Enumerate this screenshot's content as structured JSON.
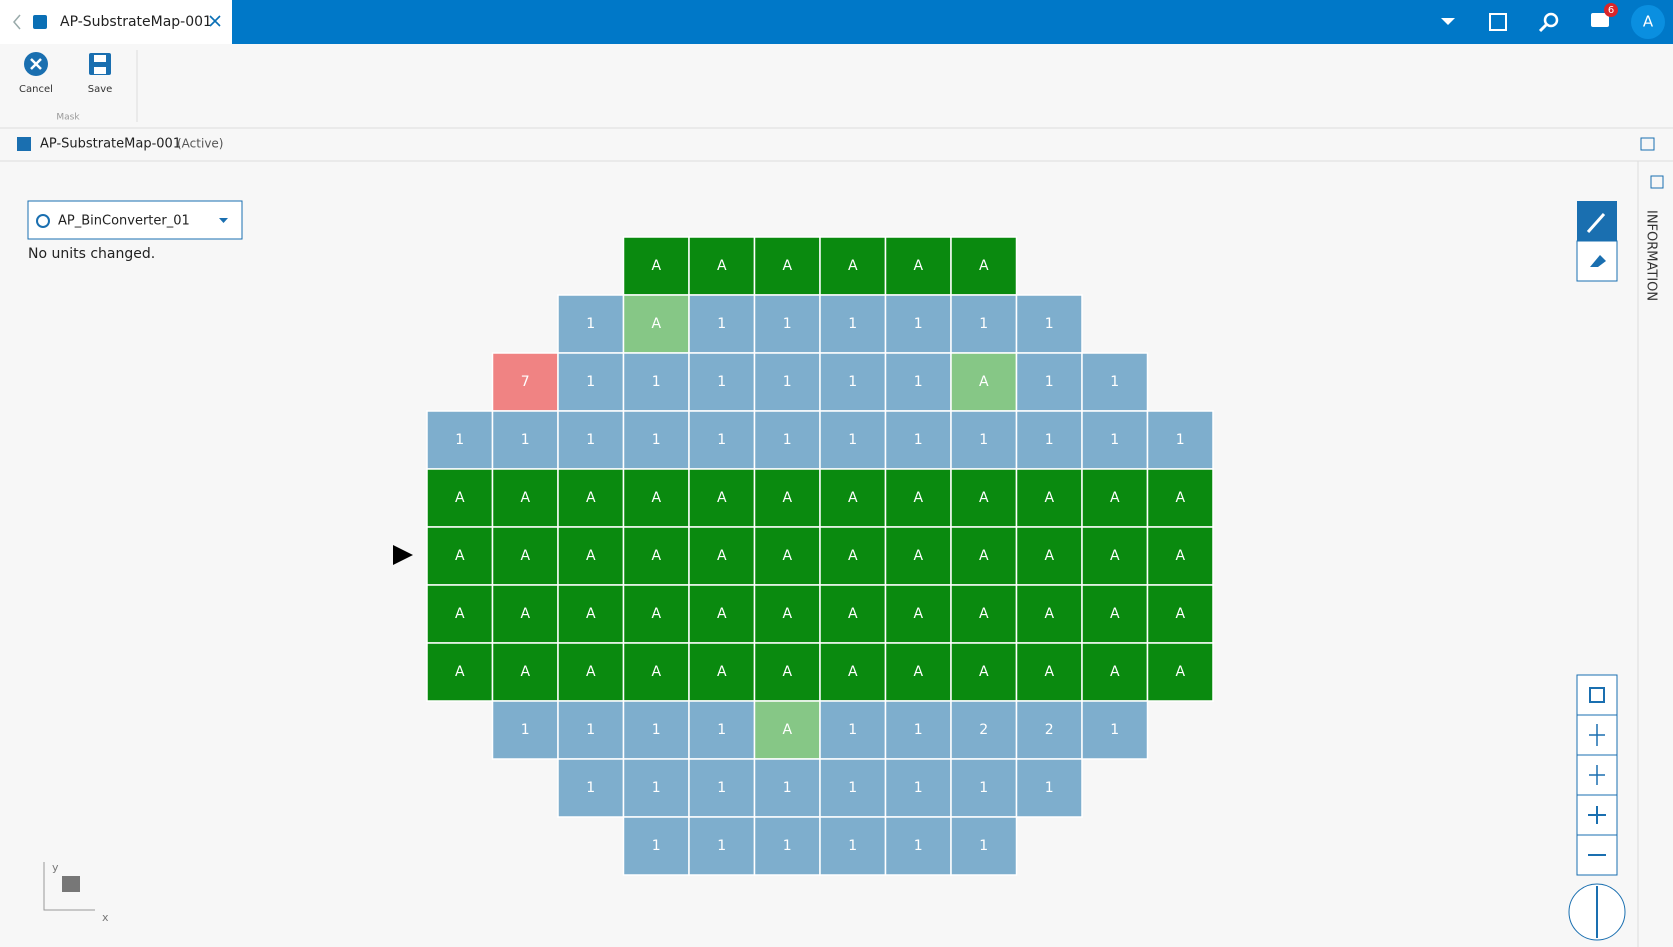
{
  "tab": {
    "title": "AP-SubstrateMap-001"
  },
  "topbar": {
    "notifications": "6",
    "avatar": "A"
  },
  "toolbar": {
    "buttons": [
      "Cancel",
      "Save"
    ],
    "group": "Mask"
  },
  "breadcrumb": {
    "title": "AP-SubstrateMap-001",
    "status": "(Active)"
  },
  "panel": {
    "dropdown": "AP_BinConverter_01",
    "message": "No units changed."
  },
  "side_panel": {
    "label": "INFORMATION"
  },
  "axes": {
    "y": "y",
    "x": "x"
  },
  "grid": {
    "rows": [
      [
        null,
        null,
        null,
        {
          "t": "A",
          "c": "#0a8a0f"
        },
        {
          "t": "A",
          "c": "#0a8a0f"
        },
        {
          "t": "A",
          "c": "#0a8a0f"
        },
        {
          "t": "A",
          "c": "#0a8a0f"
        },
        {
          "t": "A",
          "c": "#0a8a0f"
        },
        {
          "t": "A",
          "c": "#0a8a0f"
        },
        null,
        null,
        null
      ],
      [
        null,
        null,
        {
          "t": "1",
          "c": "#7eaecd"
        },
        {
          "t": "A",
          "c": "#86c786"
        },
        {
          "t": "1",
          "c": "#7eaecd"
        },
        {
          "t": "1",
          "c": "#7eaecd"
        },
        {
          "t": "1",
          "c": "#7eaecd"
        },
        {
          "t": "1",
          "c": "#7eaecd"
        },
        {
          "t": "1",
          "c": "#7eaecd"
        },
        {
          "t": "1",
          "c": "#7eaecd"
        },
        null,
        null
      ],
      [
        null,
        {
          "t": "7",
          "c": "#f08383"
        },
        {
          "t": "1",
          "c": "#7eaecd"
        },
        {
          "t": "1",
          "c": "#7eaecd"
        },
        {
          "t": "1",
          "c": "#7eaecd"
        },
        {
          "t": "1",
          "c": "#7eaecd"
        },
        {
          "t": "1",
          "c": "#7eaecd"
        },
        {
          "t": "1",
          "c": "#7eaecd"
        },
        {
          "t": "A",
          "c": "#86c786"
        },
        {
          "t": "1",
          "c": "#7eaecd"
        },
        {
          "t": "1",
          "c": "#7eaecd"
        },
        null
      ],
      [
        {
          "t": "1",
          "c": "#7eaecd"
        },
        {
          "t": "1",
          "c": "#7eaecd"
        },
        {
          "t": "1",
          "c": "#7eaecd"
        },
        {
          "t": "1",
          "c": "#7eaecd"
        },
        {
          "t": "1",
          "c": "#7eaecd"
        },
        {
          "t": "1",
          "c": "#7eaecd"
        },
        {
          "t": "1",
          "c": "#7eaecd"
        },
        {
          "t": "1",
          "c": "#7eaecd"
        },
        {
          "t": "1",
          "c": "#7eaecd"
        },
        {
          "t": "1",
          "c": "#7eaecd"
        },
        {
          "t": "1",
          "c": "#7eaecd"
        },
        {
          "t": "1",
          "c": "#7eaecd"
        }
      ],
      [
        {
          "t": "A",
          "c": "#0a8a0f"
        },
        {
          "t": "A",
          "c": "#0a8a0f"
        },
        {
          "t": "A",
          "c": "#0a8a0f"
        },
        {
          "t": "A",
          "c": "#0a8a0f"
        },
        {
          "t": "A",
          "c": "#0a8a0f"
        },
        {
          "t": "A",
          "c": "#0a8a0f"
        },
        {
          "t": "A",
          "c": "#0a8a0f"
        },
        {
          "t": "A",
          "c": "#0a8a0f"
        },
        {
          "t": "A",
          "c": "#0a8a0f"
        },
        {
          "t": "A",
          "c": "#0a8a0f"
        },
        {
          "t": "A",
          "c": "#0a8a0f"
        },
        {
          "t": "A",
          "c": "#0a8a0f"
        }
      ],
      [
        {
          "t": "A",
          "c": "#0a8a0f"
        },
        {
          "t": "A",
          "c": "#0a8a0f"
        },
        {
          "t": "A",
          "c": "#0a8a0f"
        },
        {
          "t": "A",
          "c": "#0a8a0f"
        },
        {
          "t": "A",
          "c": "#0a8a0f"
        },
        {
          "t": "A",
          "c": "#0a8a0f"
        },
        {
          "t": "A",
          "c": "#0a8a0f"
        },
        {
          "t": "A",
          "c": "#0a8a0f"
        },
        {
          "t": "A",
          "c": "#0a8a0f"
        },
        {
          "t": "A",
          "c": "#0a8a0f"
        },
        {
          "t": "A",
          "c": "#0a8a0f"
        },
        {
          "t": "A",
          "c": "#0a8a0f"
        }
      ],
      [
        {
          "t": "A",
          "c": "#0a8a0f"
        },
        {
          "t": "A",
          "c": "#0a8a0f"
        },
        {
          "t": "A",
          "c": "#0a8a0f"
        },
        {
          "t": "A",
          "c": "#0a8a0f"
        },
        {
          "t": "A",
          "c": "#0a8a0f"
        },
        {
          "t": "A",
          "c": "#0a8a0f"
        },
        {
          "t": "A",
          "c": "#0a8a0f"
        },
        {
          "t": "A",
          "c": "#0a8a0f"
        },
        {
          "t": "A",
          "c": "#0a8a0f"
        },
        {
          "t": "A",
          "c": "#0a8a0f"
        },
        {
          "t": "A",
          "c": "#0a8a0f"
        },
        {
          "t": "A",
          "c": "#0a8a0f"
        }
      ],
      [
        {
          "t": "A",
          "c": "#0a8a0f"
        },
        {
          "t": "A",
          "c": "#0a8a0f"
        },
        {
          "t": "A",
          "c": "#0a8a0f"
        },
        {
          "t": "A",
          "c": "#0a8a0f"
        },
        {
          "t": "A",
          "c": "#0a8a0f"
        },
        {
          "t": "A",
          "c": "#0a8a0f"
        },
        {
          "t": "A",
          "c": "#0a8a0f"
        },
        {
          "t": "A",
          "c": "#0a8a0f"
        },
        {
          "t": "A",
          "c": "#0a8a0f"
        },
        {
          "t": "A",
          "c": "#0a8a0f"
        },
        {
          "t": "A",
          "c": "#0a8a0f"
        },
        {
          "t": "A",
          "c": "#0a8a0f"
        }
      ],
      [
        null,
        {
          "t": "1",
          "c": "#7eaecd"
        },
        {
          "t": "1",
          "c": "#7eaecd"
        },
        {
          "t": "1",
          "c": "#7eaecd"
        },
        {
          "t": "1",
          "c": "#7eaecd"
        },
        {
          "t": "A",
          "c": "#86c786"
        },
        {
          "t": "1",
          "c": "#7eaecd"
        },
        {
          "t": "1",
          "c": "#7eaecd"
        },
        {
          "t": "2",
          "c": "#7eaecd"
        },
        {
          "t": "2",
          "c": "#7eaecd"
        },
        {
          "t": "1",
          "c": "#7eaecd"
        },
        null
      ],
      [
        null,
        null,
        {
          "t": "1",
          "c": "#7eaecd"
        },
        {
          "t": "1",
          "c": "#7eaecd"
        },
        {
          "t": "1",
          "c": "#7eaecd"
        },
        {
          "t": "1",
          "c": "#7eaecd"
        },
        {
          "t": "1",
          "c": "#7eaecd"
        },
        {
          "t": "1",
          "c": "#7eaecd"
        },
        {
          "t": "1",
          "c": "#7eaecd"
        },
        {
          "t": "1",
          "c": "#7eaecd"
        },
        null,
        null
      ],
      [
        null,
        null,
        null,
        {
          "t": "1",
          "c": "#7eaecd"
        },
        {
          "t": "1",
          "c": "#7eaecd"
        },
        {
          "t": "1",
          "c": "#7eaecd"
        },
        {
          "t": "1",
          "c": "#7eaecd"
        },
        {
          "t": "1",
          "c": "#7eaecd"
        },
        {
          "t": "1",
          "c": "#7eaecd"
        },
        null,
        null,
        null
      ]
    ]
  }
}
